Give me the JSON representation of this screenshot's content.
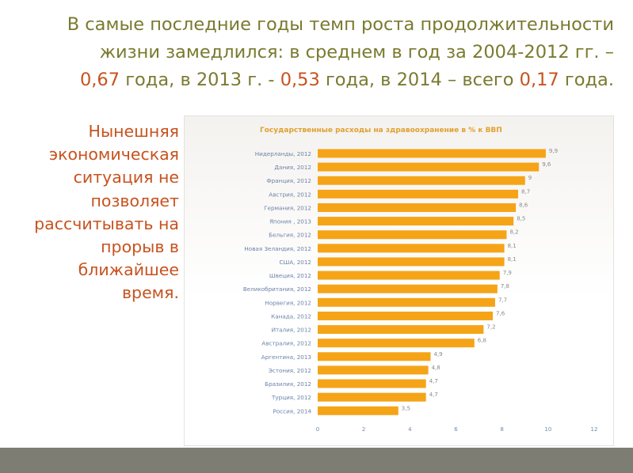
{
  "headline": {
    "line1": "В самые последние годы темп роста продолжительности",
    "line2": "жизни замедлился: в среднем в год за 2004-2012 гг. –",
    "line3_parts": [
      "0,67",
      " года, в 2013 г. - ",
      "0,53",
      " года, в 2014 – всего ",
      "0,17",
      " года."
    ]
  },
  "side_text": [
    "Нынешняя",
    "экономическая",
    "ситуация не",
    "позволяет",
    "рассчитывать на",
    "прорыв в",
    "ближайшее",
    "время."
  ],
  "colors": {
    "headline_text": "#7a7a30",
    "accent_text": "#c8521e",
    "bar": "#f5a418",
    "category_label": "#6b82a8",
    "value_label": "#8a8a8a",
    "chart_title": "#e0a030",
    "axis_tick": "#7089b0",
    "bottom_strip": "#7d7d74"
  },
  "chart_data": {
    "type": "bar",
    "orientation": "horizontal",
    "title": "Государственные расходы на здравоохранение  в % к ВВП",
    "categories": [
      "Нидерланды, 2012",
      "Дания, 2012",
      "Франция, 2012",
      "Австрия, 2012",
      "Германия, 2012",
      "Япония , 2013",
      "Бельгия, 2012",
      "Новая Зеландия, 2012",
      "США, 2012",
      "Швеция, 2012",
      "Великобритания, 2012",
      "Норвегия, 2012",
      "Канада, 2012",
      "Италия, 2012",
      "Австралия, 2012",
      "Аргентина, 2013",
      "Эстония, 2012",
      "Бразилия, 2012",
      "Турция, 2012",
      "Россия, 2014"
    ],
    "values": [
      9.9,
      9.6,
      9,
      8.7,
      8.6,
      8.5,
      8.2,
      8.1,
      8.1,
      7.9,
      7.8,
      7.7,
      7.6,
      7.2,
      6.8,
      4.9,
      4.8,
      4.7,
      4.7,
      3.5
    ],
    "value_labels": [
      "9,9",
      "9,6",
      "9",
      "8,7",
      "8,6",
      "8,5",
      "8,2",
      "8,1",
      "8,1",
      "7,9",
      "7,8",
      "7,7",
      "7,6",
      "7,2",
      "6,8",
      "4,9",
      "4,8",
      "4,7",
      "4,7",
      "3,5"
    ],
    "xlim": [
      0,
      12
    ],
    "xticks": [
      "0",
      "2",
      "4",
      "6",
      "8",
      "10",
      "12"
    ],
    "grid": false,
    "legend": "none"
  }
}
